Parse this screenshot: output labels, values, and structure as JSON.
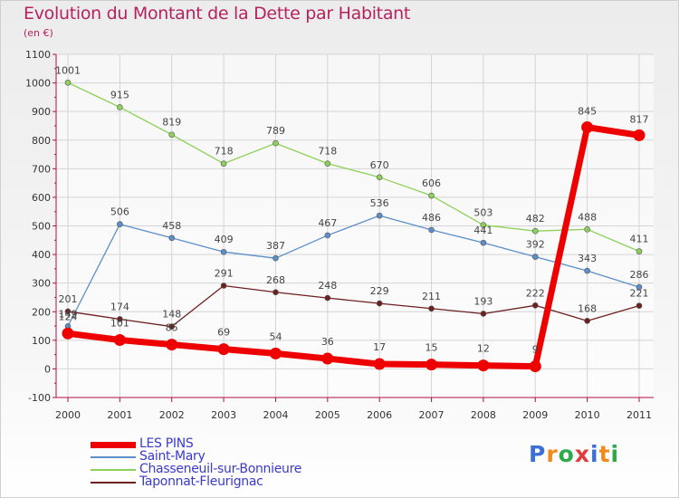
{
  "title": "Evolution du Montant de la Dette par Habitant",
  "unit_label": "(en €)",
  "logo": {
    "letters": [
      "P",
      "r",
      "o",
      "x",
      "i",
      "t",
      "i"
    ],
    "colors": [
      "#3b6fd6",
      "#f08a1c",
      "#2fa84a",
      "#e23b3b",
      "#3b6fd6",
      "#f08a1c",
      "#2fa84a"
    ]
  },
  "chart_data": {
    "type": "line",
    "title": "Evolution du Montant de la Dette par Habitant",
    "ylabel": "(en €)",
    "xlabel": "",
    "x": [
      "2000",
      "2001",
      "2002",
      "2003",
      "2004",
      "2005",
      "2006",
      "2007",
      "2008",
      "2009",
      "2010",
      "2011"
    ],
    "ylim": [
      -100,
      1100
    ],
    "yticks": [
      -100,
      0,
      100,
      200,
      300,
      400,
      500,
      600,
      700,
      800,
      900,
      1000,
      1100
    ],
    "grid": true,
    "legend_position": "bottom-left",
    "series": [
      {
        "name": "LES PINS",
        "color": "#ee0000",
        "values": [
          124,
          101,
          85,
          69,
          54,
          36,
          17,
          15,
          12,
          9,
          845,
          817
        ]
      },
      {
        "name": "Saint-Mary",
        "color": "#5b8fc9",
        "values": [
          149,
          506,
          458,
          409,
          387,
          467,
          536,
          486,
          441,
          392,
          343,
          286
        ]
      },
      {
        "name": "Chasseneuil-sur-Bonnieure",
        "color": "#8ed15a",
        "values": [
          1001,
          915,
          819,
          718,
          789,
          718,
          670,
          606,
          503,
          482,
          488,
          411
        ]
      },
      {
        "name": "Taponnat-Fleurignac",
        "color": "#6e2020",
        "values": [
          201,
          174,
          148,
          291,
          268,
          248,
          229,
          211,
          193,
          222,
          168,
          221
        ]
      }
    ]
  }
}
